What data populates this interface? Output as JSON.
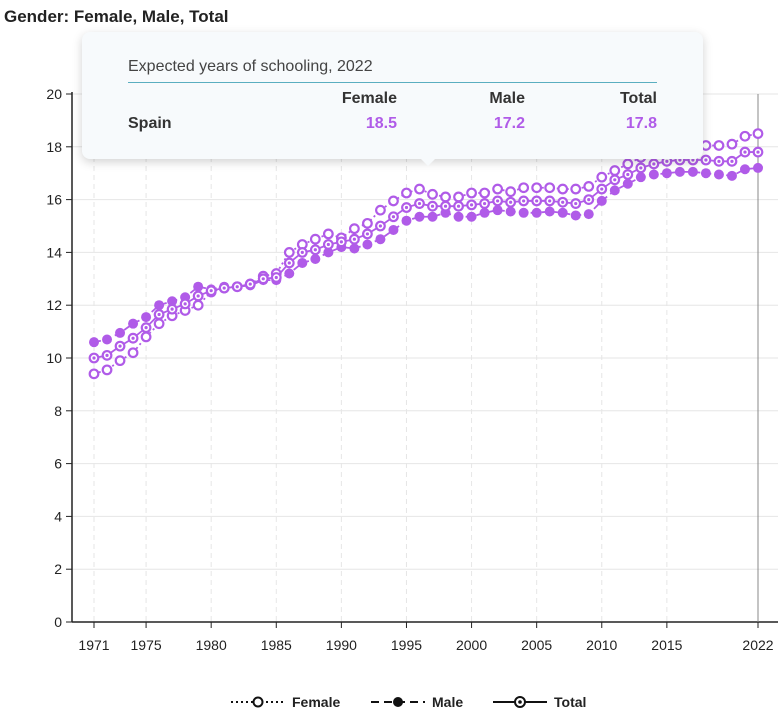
{
  "header": {
    "title": "Gender: Female, Male, Total"
  },
  "tooltip": {
    "title": "Expected years of schooling, 2022",
    "columns": [
      "Female",
      "Male",
      "Total"
    ],
    "country": "Spain",
    "values": [
      "18.5",
      "17.2",
      "17.8"
    ]
  },
  "colors": {
    "series": "#b05be8",
    "axis": "#222222",
    "grid": "#e6e6e6"
  },
  "chart_data": {
    "type": "line",
    "x": [
      1971,
      1972,
      1973,
      1974,
      1975,
      1976,
      1977,
      1978,
      1979,
      1980,
      1981,
      1982,
      1983,
      1984,
      1985,
      1986,
      1987,
      1988,
      1989,
      1990,
      1991,
      1992,
      1993,
      1994,
      1995,
      1996,
      1997,
      1998,
      1999,
      2000,
      2001,
      2002,
      2003,
      2004,
      2005,
      2006,
      2007,
      2008,
      2009,
      2010,
      2011,
      2012,
      2013,
      2014,
      2015,
      2016,
      2017,
      2018,
      2019,
      2020,
      2021,
      2022
    ],
    "xlim": [
      1971,
      2022
    ],
    "ylim": [
      0,
      20
    ],
    "x_ticks": [
      "1971",
      "1975",
      "1980",
      "1985",
      "1990",
      "1995",
      "2000",
      "2005",
      "2010",
      "2015",
      "2022"
    ],
    "y_ticks": [
      "0",
      "2",
      "4",
      "6",
      "8",
      "10",
      "12",
      "14",
      "16",
      "18",
      "20"
    ],
    "grid": true,
    "legend_position": "bottom-center",
    "series": [
      {
        "name": "Female",
        "values": [
          9.4,
          9.55,
          9.9,
          10.2,
          10.8,
          11.3,
          11.6,
          11.8,
          12.0,
          12.5,
          12.65,
          12.7,
          12.8,
          13.1,
          13.2,
          14.0,
          14.3,
          14.5,
          14.7,
          14.55,
          14.9,
          15.1,
          15.6,
          15.95,
          16.25,
          16.4,
          16.2,
          16.1,
          16.1,
          16.25,
          16.25,
          16.4,
          16.3,
          16.45,
          16.45,
          16.45,
          16.4,
          16.4,
          16.5,
          16.85,
          17.1,
          17.35,
          17.6,
          17.8,
          17.85,
          17.95,
          17.95,
          18.05,
          18.05,
          18.1,
          18.4,
          18.5
        ]
      },
      {
        "name": "Male",
        "values": [
          10.6,
          10.7,
          10.95,
          11.3,
          11.55,
          12.0,
          12.15,
          12.3,
          12.7,
          12.6,
          12.7,
          12.7,
          12.75,
          12.95,
          12.95,
          13.2,
          13.6,
          13.75,
          14.0,
          14.2,
          14.15,
          14.3,
          14.5,
          14.85,
          15.2,
          15.35,
          15.35,
          15.5,
          15.35,
          15.35,
          15.5,
          15.6,
          15.55,
          15.5,
          15.5,
          15.55,
          15.5,
          15.4,
          15.45,
          15.95,
          16.35,
          16.6,
          16.85,
          16.95,
          17.0,
          17.05,
          17.05,
          17.0,
          16.95,
          16.9,
          17.15,
          17.2
        ]
      },
      {
        "name": "Total",
        "values": [
          10.0,
          10.1,
          10.45,
          10.75,
          11.15,
          11.65,
          11.85,
          12.05,
          12.35,
          12.55,
          12.65,
          12.7,
          12.8,
          13.0,
          13.05,
          13.6,
          14.0,
          14.1,
          14.3,
          14.4,
          14.5,
          14.7,
          15.0,
          15.35,
          15.7,
          15.85,
          15.75,
          15.75,
          15.75,
          15.8,
          15.85,
          15.95,
          15.9,
          15.95,
          15.95,
          15.95,
          15.9,
          15.85,
          16.0,
          16.4,
          16.75,
          16.95,
          17.2,
          17.35,
          17.45,
          17.5,
          17.5,
          17.5,
          17.45,
          17.45,
          17.8,
          17.8
        ]
      }
    ]
  }
}
